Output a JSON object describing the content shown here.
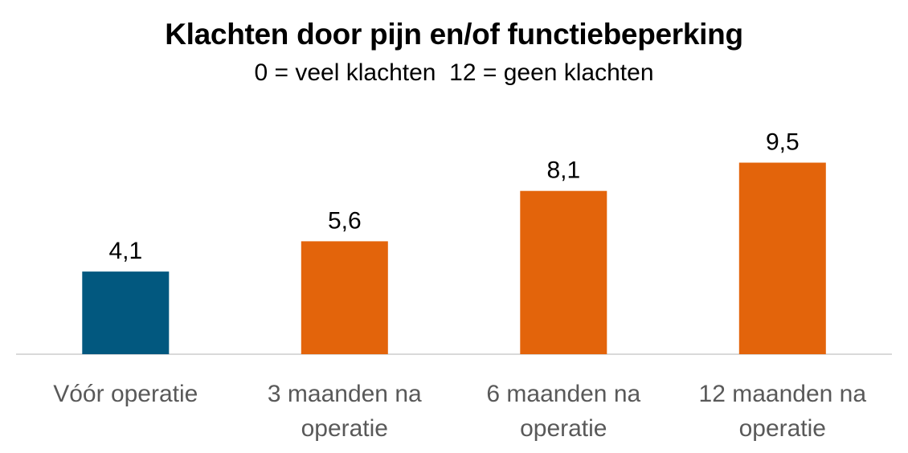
{
  "chart_data": {
    "type": "bar",
    "title": "Klachten door pijn en/of functiebeperking",
    "subtitle": "0 = veel klachten  12 = geen klachten",
    "categories": [
      [
        "Vóór operatie"
      ],
      [
        "3 maanden na",
        "operatie"
      ],
      [
        "6 maanden na",
        "operatie"
      ],
      [
        "12 maanden na",
        "operatie"
      ]
    ],
    "values": [
      4.1,
      5.6,
      8.1,
      9.5
    ],
    "data_labels": [
      "4,1",
      "5,6",
      "8,1",
      "9,5"
    ],
    "bar_colors": [
      "#02587f",
      "#e3640b",
      "#e3640b",
      "#e3640b"
    ],
    "axis_color": "#d9d9d9",
    "ylim": [
      0,
      12
    ],
    "grid": false,
    "legend": "none"
  }
}
